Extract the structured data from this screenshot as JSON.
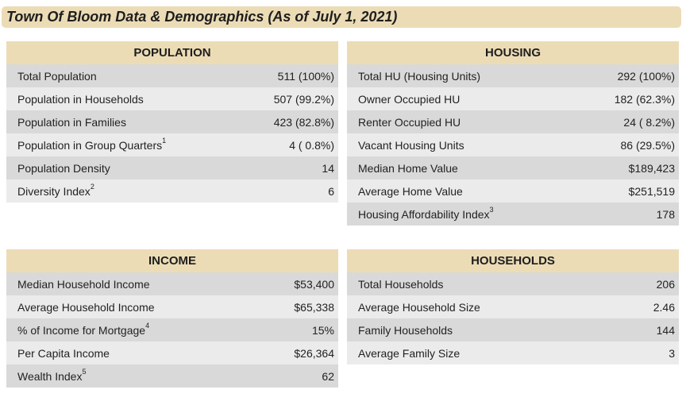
{
  "title": "Town Of Bloom Data & Demographics (As of July 1, 2021)",
  "population": {
    "header": "POPULATION",
    "rows": [
      {
        "label": "Total Population",
        "sup": "",
        "value": "511 (100%)"
      },
      {
        "label": "Population in Households",
        "sup": "",
        "value": "507 (99.2%)"
      },
      {
        "label": "Population in Families",
        "sup": "",
        "value": "423 (82.8%)"
      },
      {
        "label": "Population in Group Quarters",
        "sup": "1",
        "value": "4 ( 0.8%)"
      },
      {
        "label": "Population Density",
        "sup": "",
        "value": "14"
      },
      {
        "label": "Diversity Index",
        "sup": "2",
        "value": "6"
      }
    ]
  },
  "housing": {
    "header": "HOUSING",
    "rows": [
      {
        "label": "Total HU (Housing Units)",
        "sup": "",
        "value": "292 (100%)"
      },
      {
        "label": "Owner Occupied HU",
        "sup": "",
        "value": "182 (62.3%)"
      },
      {
        "label": "Renter Occupied HU",
        "sup": "",
        "value": "24 ( 8.2%)"
      },
      {
        "label": "Vacant Housing Units",
        "sup": "",
        "value": "86 (29.5%)"
      },
      {
        "label": "Median Home Value",
        "sup": "",
        "value": "$189,423"
      },
      {
        "label": "Average Home Value",
        "sup": "",
        "value": "$251,519"
      },
      {
        "label": "Housing Affordability Index",
        "sup": "3",
        "value": "178"
      }
    ]
  },
  "income": {
    "header": "INCOME",
    "rows": [
      {
        "label": "Median Household Income",
        "sup": "",
        "value": "$53,400"
      },
      {
        "label": "Average Household Income",
        "sup": "",
        "value": "$65,338"
      },
      {
        "label": "% of Income for Mortgage",
        "sup": "4",
        "value": "15%"
      },
      {
        "label": "Per Capita Income",
        "sup": "",
        "value": "$26,364"
      },
      {
        "label": "Wealth Index",
        "sup": "5",
        "value": "62"
      }
    ]
  },
  "households": {
    "header": "HOUSEHOLDS",
    "rows": [
      {
        "label": "Total Households",
        "sup": "",
        "value": "206"
      },
      {
        "label": "Average Household Size",
        "sup": "",
        "value": "2.46"
      },
      {
        "label": "Family Households",
        "sup": "",
        "value": "144"
      },
      {
        "label": "Average Family Size",
        "sup": "",
        "value": "3"
      }
    ]
  }
}
